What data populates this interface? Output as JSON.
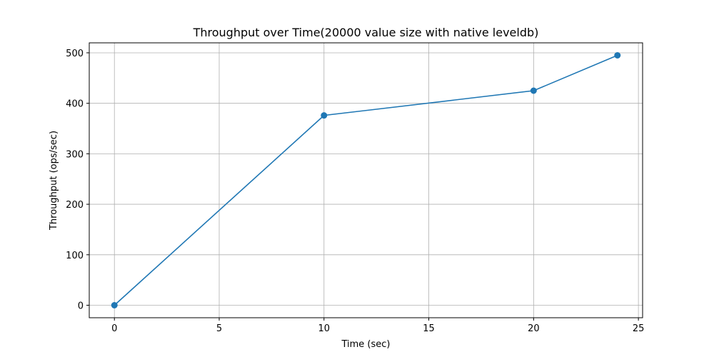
{
  "chart_data": {
    "type": "line",
    "title": "Throughput over Time(20000 value size with native leveldb)",
    "xlabel": "Time (sec)",
    "ylabel": "Throughput (ops/sec)",
    "xlim": [
      -1.2,
      25.2
    ],
    "ylim": [
      -24.75,
      519.75
    ],
    "xticks": [
      0,
      5,
      10,
      15,
      20,
      25
    ],
    "yticks": [
      0,
      100,
      200,
      300,
      400,
      500
    ],
    "grid": true,
    "series": [
      {
        "x": [
          0,
          10,
          20,
          24
        ],
        "y": [
          0,
          376,
          425,
          495
        ],
        "color": "#1f77b4",
        "marker": "circle"
      }
    ]
  }
}
